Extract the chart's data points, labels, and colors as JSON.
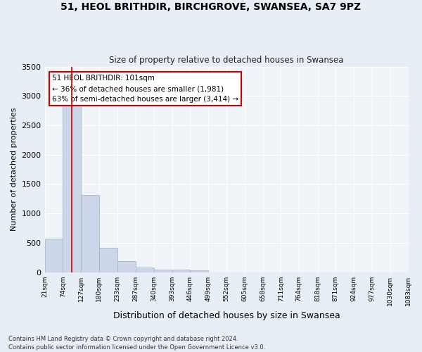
{
  "title_line1": "51, HEOL BRITHDIR, BIRCHGROVE, SWANSEA, SA7 9PZ",
  "title_line2": "Size of property relative to detached houses in Swansea",
  "xlabel": "Distribution of detached houses by size in Swansea",
  "ylabel": "Number of detached properties",
  "bar_color": "#ccd6e8",
  "bar_edge_color": "#9ab0cc",
  "bin_edges": [
    21,
    74,
    127,
    180,
    233,
    287,
    340,
    393,
    446,
    499,
    552,
    605,
    658,
    711,
    764,
    818,
    871,
    924,
    977,
    1030,
    1083
  ],
  "bar_heights": [
    570,
    2900,
    1310,
    415,
    185,
    80,
    50,
    45,
    35,
    0,
    0,
    0,
    0,
    0,
    0,
    0,
    0,
    0,
    0,
    0
  ],
  "property_size": 101,
  "annotation_text": "51 HEOL BRITHDIR: 101sqm\n← 36% of detached houses are smaller (1,981)\n63% of semi-detached houses are larger (3,414) →",
  "annotation_box_color": "#ffffff",
  "annotation_border_color": "#cc0000",
  "vline_color": "#cc0000",
  "ylim": [
    0,
    3500
  ],
  "yticks": [
    0,
    500,
    1000,
    1500,
    2000,
    2500,
    3000,
    3500
  ],
  "footnote": "Contains HM Land Registry data © Crown copyright and database right 2024.\nContains public sector information licensed under the Open Government Licence v3.0.",
  "bg_color": "#e8eef5",
  "plot_bg_color": "#f0f4f8",
  "grid_color": "#ffffff"
}
